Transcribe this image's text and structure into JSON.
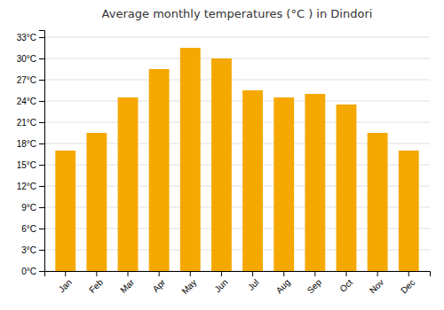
{
  "chart_data": {
    "type": "bar",
    "title": "Average monthly temperatures (°C ) in Dindori",
    "categories": [
      "Jan",
      "Feb",
      "Mar",
      "Apr",
      "May",
      "Jun",
      "Jul",
      "Aug",
      "Sep",
      "Oct",
      "Nov",
      "Dec"
    ],
    "values": [
      17,
      19.5,
      24.5,
      28.5,
      31.5,
      30,
      25.5,
      24.5,
      25,
      23.5,
      19.5,
      17
    ],
    "color": "#F5A800",
    "ylim": [
      0,
      34
    ],
    "yticks": [
      {
        "value": 0,
        "label": "0°C"
      },
      {
        "value": 3,
        "label": "3°C"
      },
      {
        "value": 6,
        "label": "6°C"
      },
      {
        "value": 9,
        "label": "9°C"
      },
      {
        "value": 12,
        "label": "12°C"
      },
      {
        "value": 15,
        "label": "15°C"
      },
      {
        "value": 18,
        "label": "18°C"
      },
      {
        "value": 21,
        "label": "21°C"
      },
      {
        "value": 24,
        "label": "24°C"
      },
      {
        "value": 27,
        "label": "27°C"
      },
      {
        "value": 30,
        "label": "30°C"
      },
      {
        "value": 33,
        "label": "33°C"
      }
    ],
    "grid": true
  }
}
